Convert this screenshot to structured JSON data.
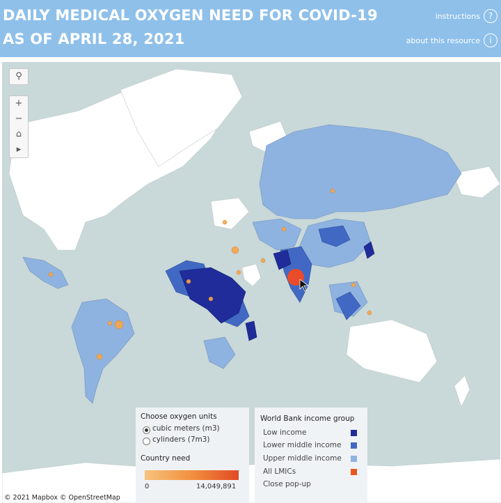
{
  "header": {
    "title_line1": "DAILY MEDICAL OXYGEN NEED FOR COVID-19",
    "title_line2": "AS OF APRIL 28, 2021",
    "instructions_label": "instructions",
    "about_label": "about this resource",
    "instructions_icon": "?",
    "about_icon": "i"
  },
  "map_controls": {
    "search_icon": "⚲",
    "zoom_in": "+",
    "zoom_out": "−",
    "home_icon": "⌂",
    "play_icon": "▸"
  },
  "units_panel": {
    "title": "Choose oxygen units",
    "options": [
      {
        "label": "cubic meters (m3)",
        "selected": true
      },
      {
        "label": "cylinders (7m3)",
        "selected": false
      }
    ],
    "need_title": "Country need",
    "scale_min": "0",
    "scale_max": "14,049,891"
  },
  "income_panel": {
    "title": "World Bank income group",
    "items": [
      {
        "label": "Low income",
        "color": "#1f2c9a"
      },
      {
        "label": "Lower middle income",
        "color": "#4169c4"
      },
      {
        "label": "Upper middle income",
        "color": "#8fb3e0"
      },
      {
        "label": "All LMICs",
        "color": "#e8561e"
      },
      {
        "label": "Close pop-up",
        "color": ""
      }
    ]
  },
  "colors": {
    "header": "#8ec0ea",
    "ocean": "#c9d8d8",
    "non_lmic_land": "#ffffff",
    "low_income": "#1f2c9a",
    "lower_middle_income": "#4169c4",
    "upper_middle_income": "#8fb3e0",
    "bubble": "#f6a64a",
    "bubble_highlight": "#ea4b2a"
  },
  "attribution": "© 2021 Mapbox  © OpenStreetMap"
}
